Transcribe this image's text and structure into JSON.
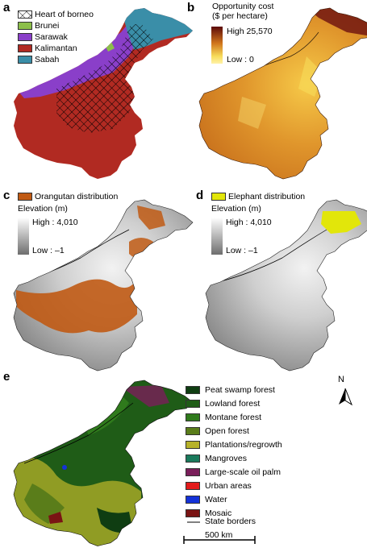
{
  "panels": {
    "a": {
      "letter": "a",
      "legend": [
        {
          "label": "Heart of borneo",
          "color": "#ffffff",
          "pattern": "hatch"
        },
        {
          "label": "Brunei",
          "color": "#8cbf4a"
        },
        {
          "label": "Sarawak",
          "color": "#8a3fc9"
        },
        {
          "label": "Kalimantan",
          "color": "#b12a22"
        },
        {
          "label": "Sabah",
          "color": "#3a8ea8"
        }
      ]
    },
    "b": {
      "letter": "b",
      "title_line1": "Opportunity cost",
      "title_line2": "($ per hectare)",
      "high": "High 25,570",
      "low": "Low : 0",
      "colors": [
        "#5c0a0a",
        "#d0751c",
        "#f7dc5a",
        "#fff2a8"
      ]
    },
    "c": {
      "letter": "c",
      "distribution": "Orangutan distribution",
      "dist_color": "#c05a14",
      "elev_title": "Elevation (m)",
      "high": "High : 4,010",
      "low": "Low : –1"
    },
    "d": {
      "letter": "d",
      "distribution": "Elephant distribution",
      "dist_color": "#e2e60a",
      "elev_title": "Elevation (m)",
      "high": "High : 4,010",
      "low": "Low : –1"
    },
    "e": {
      "letter": "e",
      "legend": [
        {
          "label": "Peat swamp forest",
          "color": "#0f3d12"
        },
        {
          "label": "Lowland forest",
          "color": "#1f5c17"
        },
        {
          "label": "Montane forest",
          "color": "#2f7a1c"
        },
        {
          "label": "Open forest",
          "color": "#5a7d1a"
        },
        {
          "label": "Plantations/regrowth",
          "color": "#b7b22a"
        },
        {
          "label": "Mangroves",
          "color": "#1a7a5c"
        },
        {
          "label": "Large-scale oil palm",
          "color": "#7a1e5a"
        },
        {
          "label": "Urban areas",
          "color": "#e31b1b"
        },
        {
          "label": "Water",
          "color": "#1432d8"
        },
        {
          "label": "Mosaic",
          "color": "#7a1414"
        }
      ],
      "borders_label": "State borders",
      "north": "N",
      "scale": "500 km"
    }
  }
}
